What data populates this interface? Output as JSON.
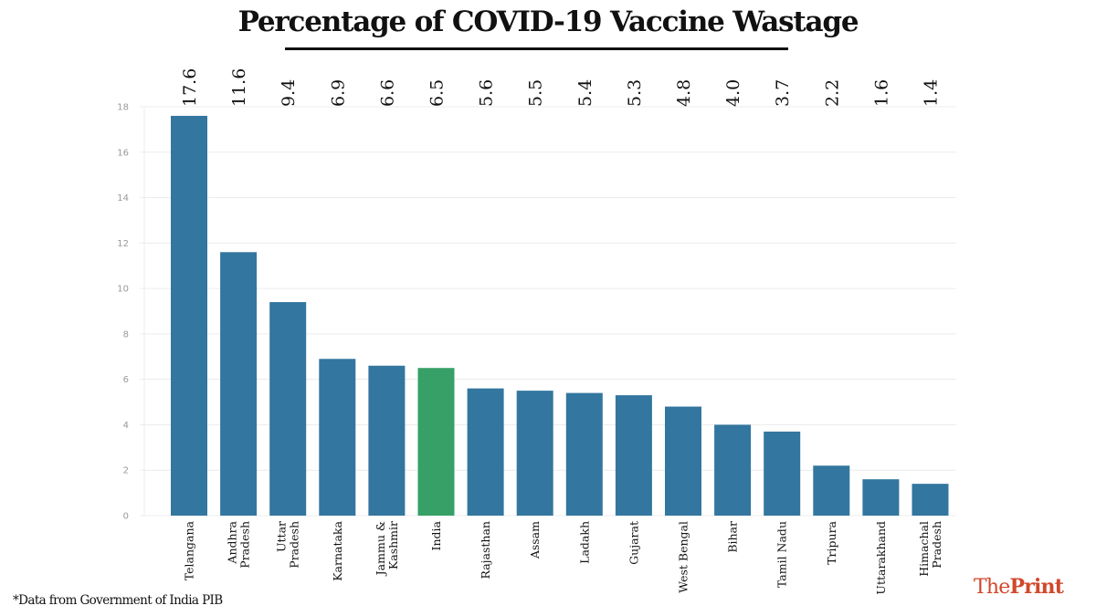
{
  "title": "Percentage of COVID-19 Vaccine Wastage",
  "footnote": "*Data from Government of India PIB",
  "logo": {
    "part1": "The",
    "part2": "Print"
  },
  "colors": {
    "bar": "#33769f",
    "highlight": "#36a067",
    "grid": "#ececec",
    "logo": "#d0492b"
  },
  "chart_data": {
    "type": "bar",
    "title": "Percentage of COVID-19 Vaccine Wastage",
    "xlabel": "",
    "ylabel": "",
    "ylim": [
      0,
      18
    ],
    "yticks": [
      0,
      2,
      4,
      6,
      8,
      10,
      12,
      14,
      16,
      18
    ],
    "grid": true,
    "highlight_category": "India",
    "categories": [
      [
        "Telangana"
      ],
      [
        "Andhra",
        "Pradesh"
      ],
      [
        "Uttar",
        "Pradesh"
      ],
      [
        "Karnataka"
      ],
      [
        "Jammu &",
        "Kashmir"
      ],
      [
        "India"
      ],
      [
        "Rajasthan"
      ],
      [
        "Assam"
      ],
      [
        "Ladakh"
      ],
      [
        "Gujarat"
      ],
      [
        "West Bengal"
      ],
      [
        "Bihar"
      ],
      [
        "Tamil Nadu"
      ],
      [
        "Tripura"
      ],
      [
        "Uttarakhand"
      ],
      [
        "Himachal",
        "Pradesh"
      ]
    ],
    "values": [
      17.6,
      11.6,
      9.4,
      6.9,
      6.6,
      6.5,
      5.6,
      5.5,
      5.4,
      5.3,
      4.8,
      4.0,
      3.7,
      2.2,
      1.6,
      1.4
    ],
    "value_labels": [
      "17.6",
      "11.6",
      "9.4",
      "6.9",
      "6.6",
      "6.5",
      "5.6",
      "5.5",
      "5.4",
      "5.3",
      "4.8",
      "4.0",
      "3.7",
      "2.2",
      "1.6",
      "1.4"
    ]
  }
}
